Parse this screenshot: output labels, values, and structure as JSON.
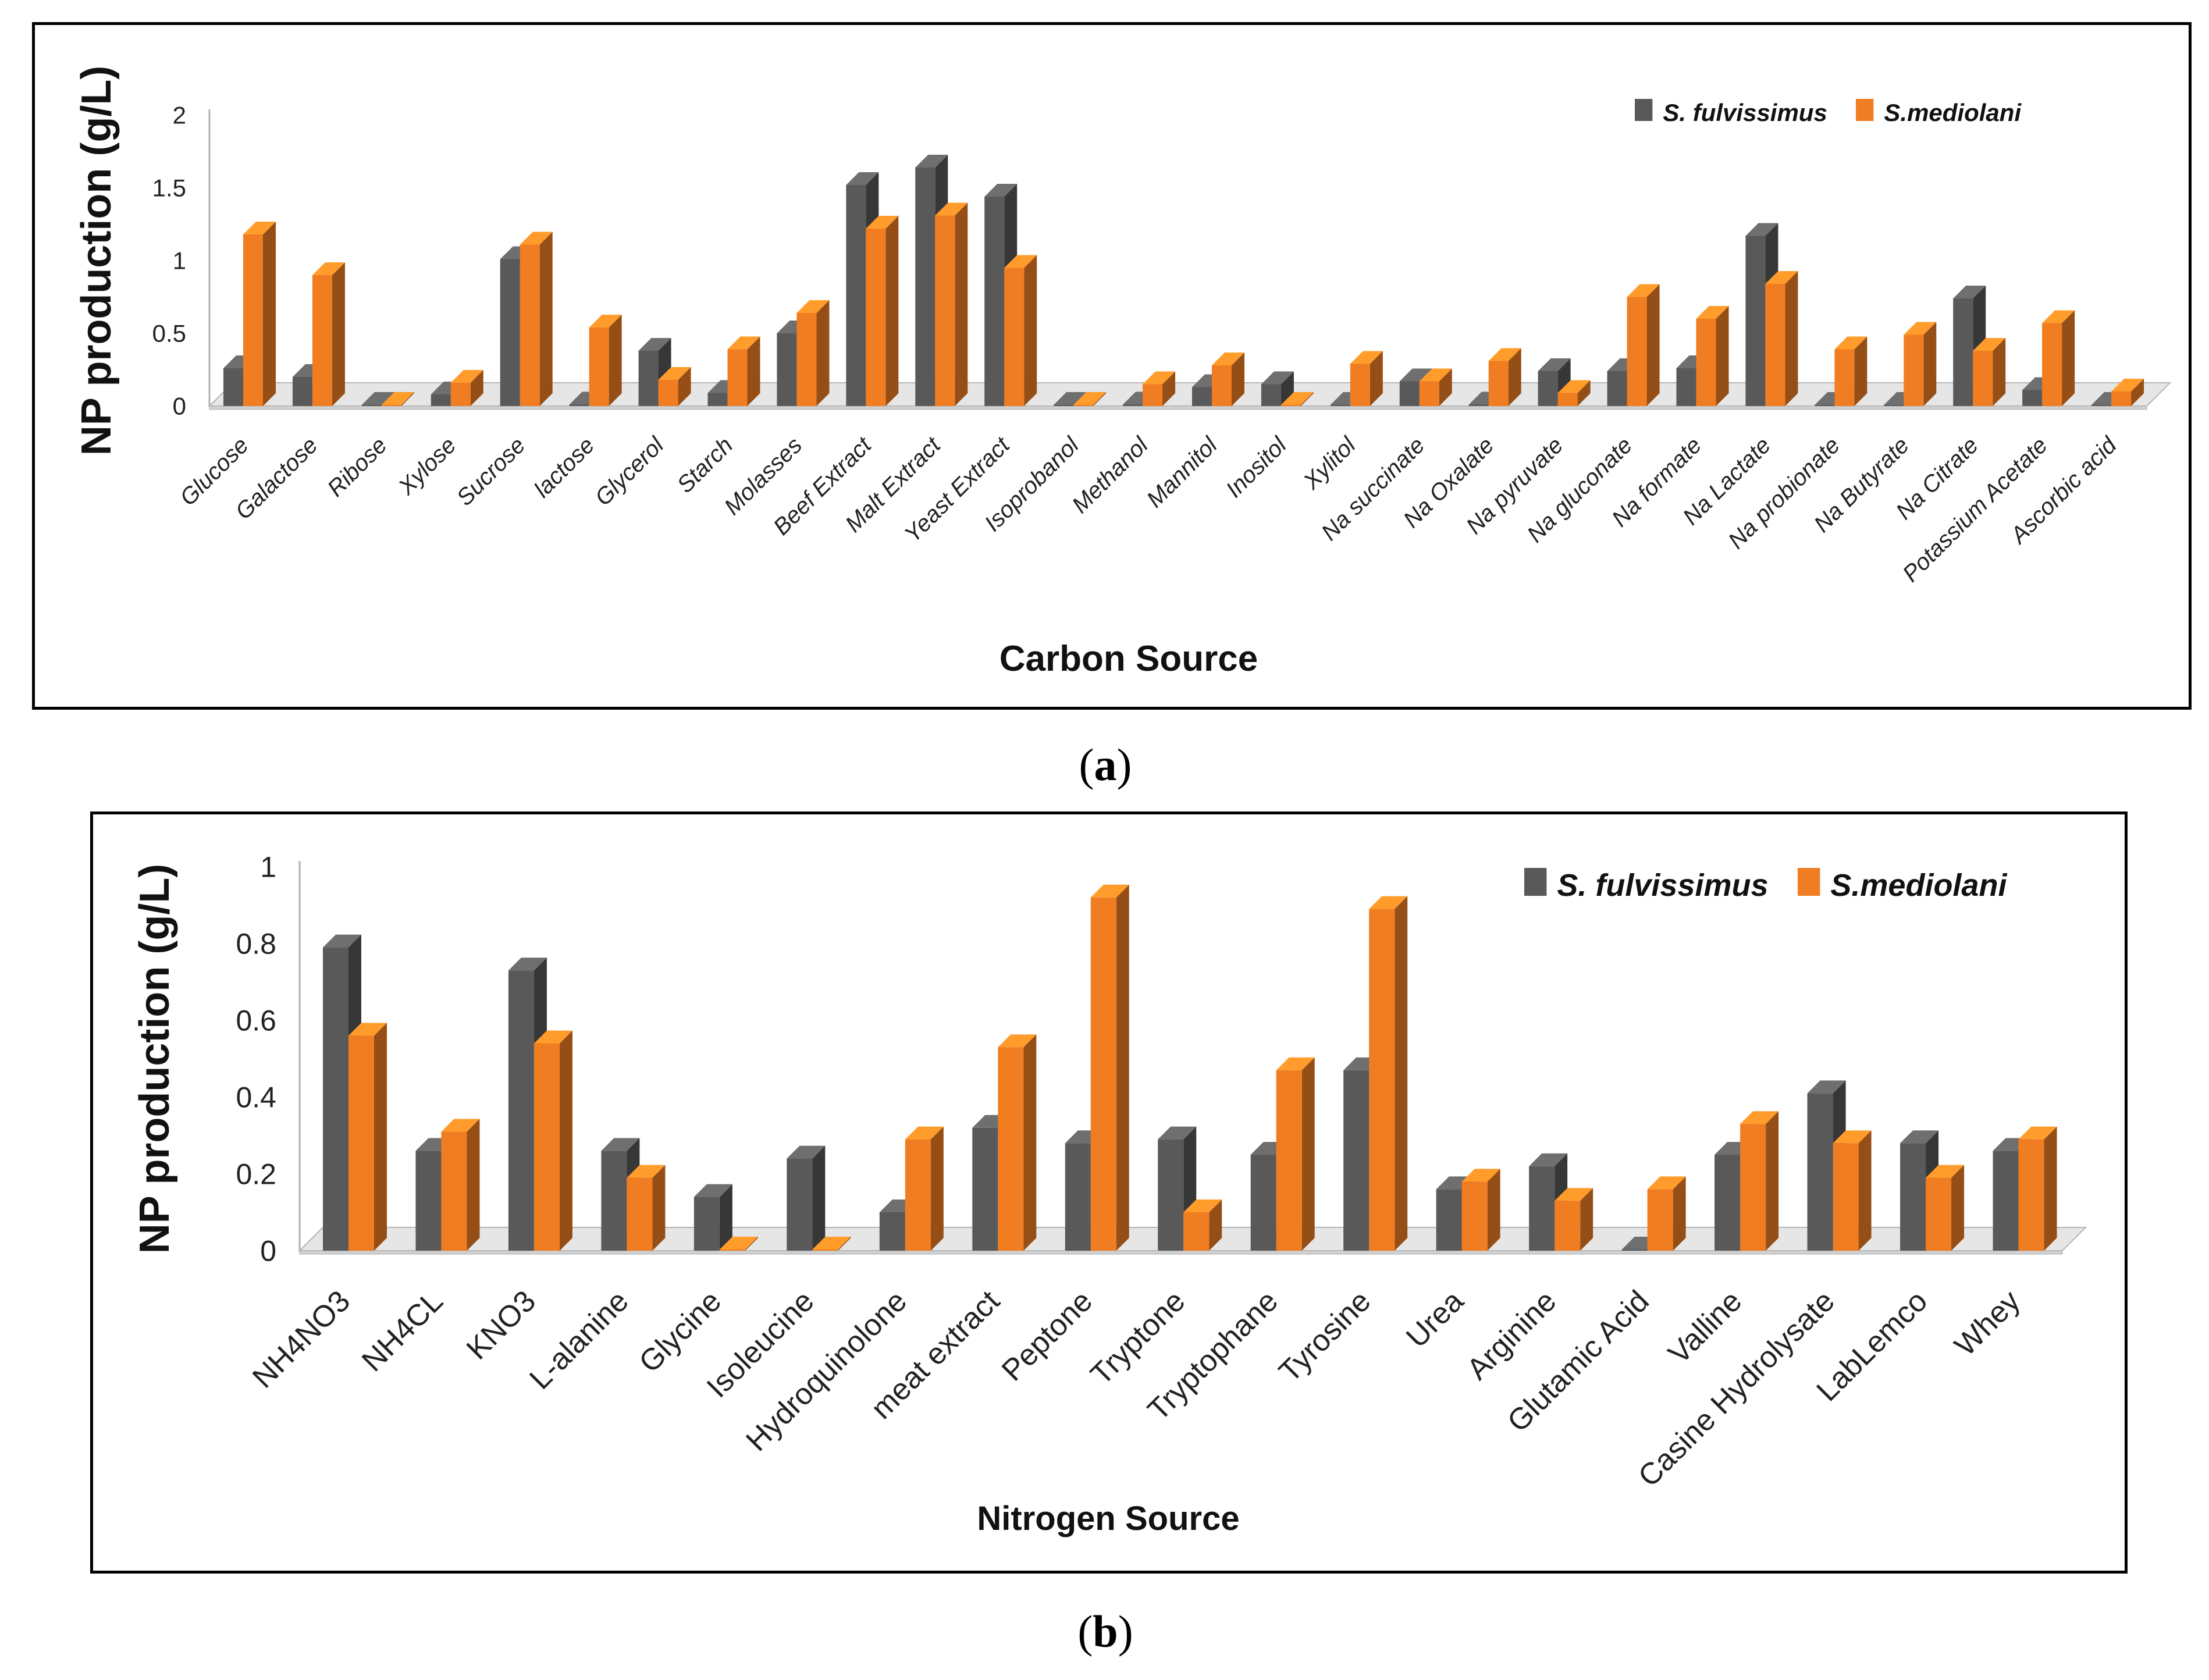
{
  "chart_data": [
    {
      "type": "bar",
      "panel_label": "a",
      "xlabel": "Carbon Source",
      "ylabel": "NP production (g/L)",
      "ylim": [
        0,
        2
      ],
      "yticks": [
        "0",
        "0.5",
        "1",
        "1.5",
        "2"
      ],
      "grid": false,
      "legend_position": "top-right",
      "categories": [
        "Glucose",
        "Galactose",
        "Ribose",
        "Xylose",
        "Sucrose",
        "lactose",
        "Glycerol",
        "Starch",
        "Molasses",
        "Beef Extract",
        "Malt Extract",
        "Yeast Extract",
        "Isoprobanol",
        "Methanol",
        "Mannitol",
        "Inositol",
        "Xylitol",
        "Na succinate",
        "Na Oxalate",
        "Na pyruvate",
        "Na gluconate",
        "Na formate",
        "Na Lactate",
        "Na probionate",
        "Na Butyrate",
        "Na Citrate",
        "Potassium Acetate",
        "Ascorbic acid"
      ],
      "series": [
        {
          "name": "S. fulvissimus",
          "color": "#595959",
          "values": [
            0.26,
            0.2,
            0.0,
            0.08,
            1.01,
            0.01,
            0.38,
            0.09,
            0.5,
            1.52,
            1.64,
            1.44,
            0.0,
            0.01,
            0.13,
            0.15,
            0.0,
            0.17,
            0.01,
            0.24,
            0.24,
            0.26,
            1.17,
            0.0,
            0.0,
            0.74,
            0.11,
            0.0
          ]
        },
        {
          "name": "S.mediolani",
          "color": "#f07d22",
          "values": [
            1.18,
            0.9,
            0.0,
            0.16,
            1.11,
            0.54,
            0.18,
            0.39,
            0.64,
            1.22,
            1.31,
            0.95,
            0.0,
            0.15,
            0.28,
            0.0,
            0.29,
            0.17,
            0.31,
            0.09,
            0.75,
            0.6,
            0.84,
            0.39,
            0.49,
            0.38,
            0.57,
            0.1
          ]
        }
      ]
    },
    {
      "type": "bar",
      "panel_label": "b",
      "xlabel": "Nitrogen Source",
      "ylabel": "NP production (g/L)",
      "ylim": [
        0,
        1
      ],
      "yticks": [
        "0",
        "0.2",
        "0.4",
        "0.6",
        "0.8",
        "1"
      ],
      "grid": false,
      "legend_position": "top-right",
      "categories": [
        "NH4NO3",
        "NH4CL",
        "KNO3",
        "L-alanine",
        "Glycine",
        "Isoleucine",
        "Hydroquinolone",
        "meat extract",
        "Peptone",
        "Tryptone",
        "Tryptophane",
        "Tyrosine",
        "Urea",
        "Arginine",
        "Glutamic Acid",
        "Valline",
        "Casine Hydrolysate",
        "LabLemco",
        "Whey"
      ],
      "series": [
        {
          "name": "S. fulvissimus",
          "color": "#595959",
          "values": [
            0.79,
            0.26,
            0.73,
            0.26,
            0.14,
            0.24,
            0.1,
            0.32,
            0.28,
            0.29,
            0.25,
            0.47,
            0.16,
            0.22,
            0.0,
            0.25,
            0.41,
            0.28,
            0.26
          ]
        },
        {
          "name": "S.mediolani",
          "color": "#f07d22",
          "values": [
            0.56,
            0.31,
            0.54,
            0.19,
            0.0,
            0.0,
            0.29,
            0.53,
            0.92,
            0.1,
            0.47,
            0.89,
            0.18,
            0.13,
            0.16,
            0.33,
            0.28,
            0.19,
            0.29
          ]
        }
      ]
    }
  ],
  "captions": {
    "a": "a",
    "b": "b"
  }
}
